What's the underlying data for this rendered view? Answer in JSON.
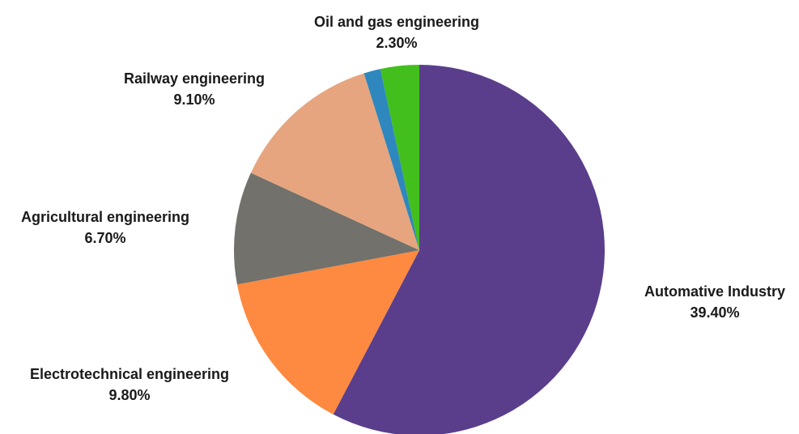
{
  "chart_data": {
    "type": "pie",
    "start_angle_deg": 0,
    "direction": "clockwise",
    "slices": [
      {
        "label": "Automative Industry",
        "value": 39.4,
        "value_label": "39.40%",
        "color": "#5a3e8c"
      },
      {
        "label": "Electrotechnical engineering",
        "value": 9.8,
        "value_label": "9.80%",
        "color": "#fd8a40"
      },
      {
        "label": "Agricultural engineering",
        "value": 6.7,
        "value_label": "6.70%",
        "color": "#72716b"
      },
      {
        "label": "Railway engineering",
        "value": 9.1,
        "value_label": "9.10%",
        "color": "#e6a57f"
      },
      {
        "label": "",
        "value": 1.0,
        "value_label": "",
        "color": "#2e88bd"
      },
      {
        "label": "Oil and gas engineering",
        "value": 2.3,
        "value_label": "2.30%",
        "color": "#42bf1c"
      }
    ]
  }
}
